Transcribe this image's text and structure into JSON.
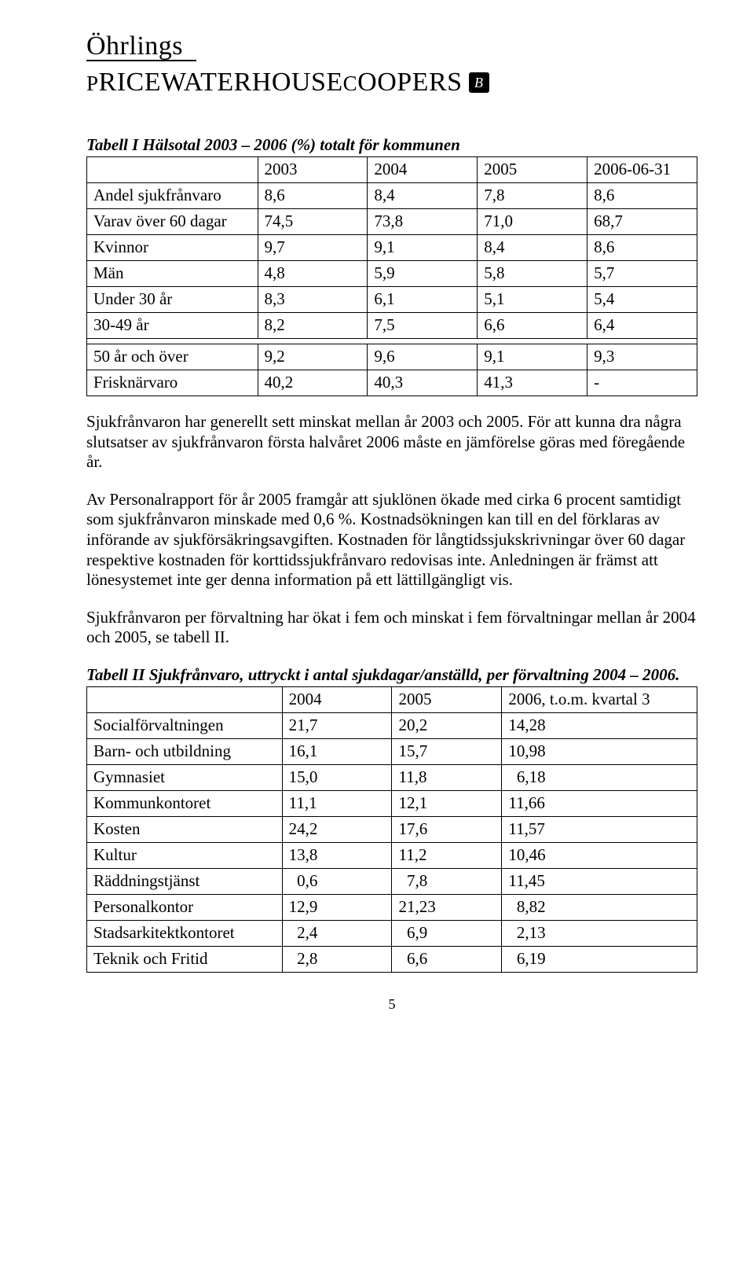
{
  "logo": {
    "top": "Öhrlings",
    "bottom_html": "P<span class='big'>RICEWATERHOUSE</span>C<span class='big'>OOPERS</span>",
    "badge": "B"
  },
  "table1": {
    "title": "Tabell I  Hälsotal 2003 – 2006 (%) totalt för kommunen",
    "headers": [
      "",
      "2003",
      "2004",
      "2005",
      "2006-06-31"
    ],
    "rows_a": [
      [
        "Andel sjukfrånvaro",
        "8,6",
        "8,4",
        "7,8",
        "8,6"
      ],
      [
        "Varav över 60 dagar",
        "74,5",
        "73,8",
        "71,0",
        "68,7"
      ],
      [
        "Kvinnor",
        "9,7",
        "9,1",
        "8,4",
        "8,6"
      ],
      [
        "Män",
        "4,8",
        "5,9",
        "5,8",
        "5,7"
      ],
      [
        "Under 30 år",
        "8,3",
        "6,1",
        "5,1",
        "5,4"
      ],
      [
        "30-49 år",
        "8,2",
        "7,5",
        "6,6",
        "6,4"
      ]
    ],
    "rows_b": [
      [
        "50 år och över",
        "9,2",
        "9,6",
        "9,1",
        "9,3"
      ],
      [
        "Frisknärvaro",
        "40,2",
        "40,3",
        "41,3",
        "-"
      ]
    ]
  },
  "para1": "Sjukfrånvaron har generellt sett minskat mellan år 2003 och 2005. För att kunna dra några slutsatser av sjukfrånvaron första halvåret 2006 måste en jämförelse göras med föregående år.",
  "para2": "Av Personalrapport för år 2005 framgår att sjuklönen ökade med cirka 6 procent samtidigt som sjukfrånvaron minskade med 0,6 %. Kostnadsökningen kan till en del förklaras av införande av sjukförsäkringsavgiften. Kostnaden för långtidssjukskrivningar över 60 dagar respektive kostnaden för korttidssjukfrånvaro redovisas inte. Anledningen är främst att lönesystemet inte ger denna information på ett lättillgängligt vis.",
  "para3": "Sjukfrånvaron per förvaltning har ökat i fem och minskat i fem förvaltningar mellan år 2004 och 2005, se tabell II.",
  "table2": {
    "title": "Tabell II Sjukfrånvaro, uttryckt i antal sjukdagar/anställd, per förvaltning 2004 – 2006.",
    "headers": [
      "",
      "2004",
      "2005",
      "2006, t.o.m. kvartal 3"
    ],
    "rows": [
      [
        "Socialförvaltningen",
        "21,7",
        "20,2",
        "14,28"
      ],
      [
        "Barn- och utbildning",
        "16,1",
        "15,7",
        "10,98"
      ],
      [
        "Gymnasiet",
        "15,0",
        "11,8",
        "  6,18"
      ],
      [
        "Kommunkontoret",
        "11,1",
        "12,1",
        "11,66"
      ],
      [
        "Kosten",
        "24,2",
        "17,6",
        "11,57"
      ],
      [
        "Kultur",
        "13,8",
        "11,2",
        "10,46"
      ],
      [
        "Räddningstjänst",
        "  0,6",
        "  7,8",
        "11,45"
      ],
      [
        "Personalkontor",
        "12,9",
        "21,23",
        "  8,82"
      ],
      [
        "Stadsarkitektkontoret",
        "  2,4",
        "  6,9",
        "  2,13"
      ],
      [
        "Teknik och Fritid",
        "  2,8",
        "  6,6",
        "  6,19"
      ]
    ]
  },
  "page_number": "5",
  "style": {
    "body_font": "Times New Roman",
    "font_size_pt": 16,
    "text_color": "#000000",
    "bg_color": "#ffffff",
    "border_color": "#000000"
  }
}
